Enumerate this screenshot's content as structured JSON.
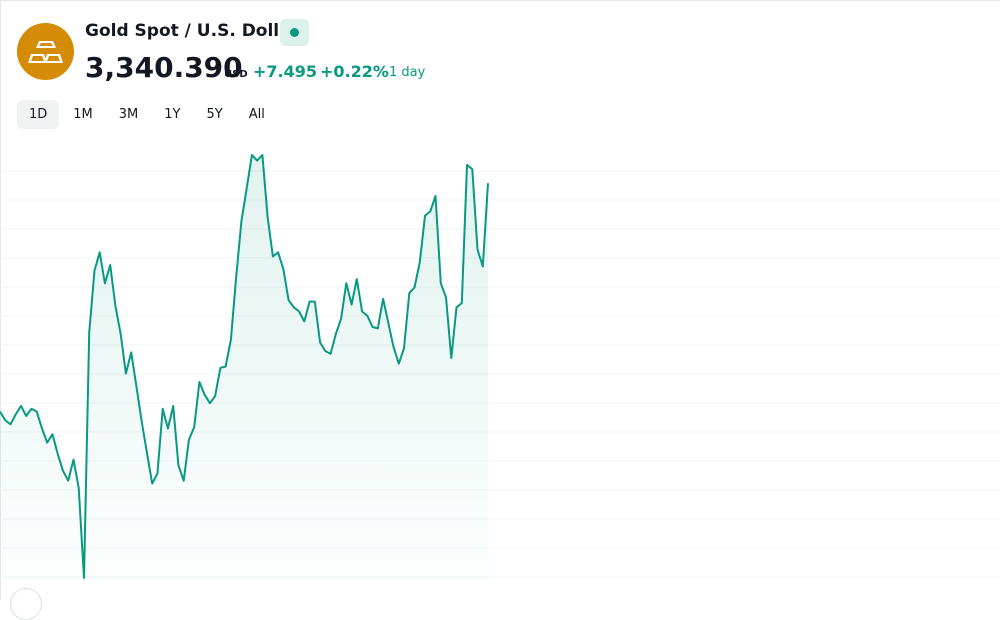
{
  "header": {
    "title": "Gold Spot / U.S. Dollar",
    "logo_icon": "gold-bars-icon",
    "live_icon": "live-dot-icon",
    "price": "3,340.390",
    "currency": "USD",
    "change": "+7.495",
    "change_percent": "+0.22%",
    "period": "1 day"
  },
  "colors": {
    "accent": "#089981",
    "logo": "#d48c06",
    "live_badge": "#daf2ea"
  },
  "ranges": {
    "items": [
      {
        "label": "1D",
        "active": true
      },
      {
        "label": "1M",
        "active": false
      },
      {
        "label": "3M",
        "active": false
      },
      {
        "label": "1Y",
        "active": false
      },
      {
        "label": "5Y",
        "active": false
      },
      {
        "label": "All",
        "active": false
      }
    ]
  },
  "chart_data": {
    "type": "area",
    "grid": true,
    "series": [
      {
        "values": [
          3331.8,
          3331.2,
          3330.9,
          3331.6,
          3332.2,
          3331.5,
          3332.0,
          3331.8,
          3330.6,
          3329.6,
          3330.2,
          3328.8,
          3327.6,
          3326.9,
          3328.4,
          3326.4,
          3320.0,
          3337.4,
          3341.8,
          3343.1,
          3340.9,
          3342.2,
          3339.3,
          3337.3,
          3334.5,
          3336.0,
          3333.6,
          3331.1,
          3328.9,
          3326.7,
          3327.4,
          3332.0,
          3330.6,
          3332.2,
          3328.0,
          3326.9,
          3329.8,
          3330.7,
          3333.9,
          3333.0,
          3332.4,
          3332.9,
          3334.9,
          3335.0,
          3336.9,
          3341.3,
          3345.3,
          3347.6,
          3350.0,
          3349.6,
          3350.0,
          3345.6,
          3342.8,
          3343.1,
          3341.9,
          3339.7,
          3339.2,
          3338.9,
          3338.2,
          3339.6,
          3339.6,
          3336.7,
          3336.1,
          3335.9,
          3337.3,
          3338.4,
          3340.9,
          3339.4,
          3341.2,
          3338.9,
          3338.6,
          3337.8,
          3337.7,
          3339.8,
          3338.1,
          3336.4,
          3335.2,
          3336.3,
          3340.2,
          3340.6,
          3342.4,
          3345.7,
          3346.0,
          3347.1,
          3340.9,
          3339.9,
          3335.6,
          3339.2,
          3339.5,
          3349.3,
          3349.0,
          3343.3,
          3342.1,
          3348.0
        ]
      }
    ]
  }
}
